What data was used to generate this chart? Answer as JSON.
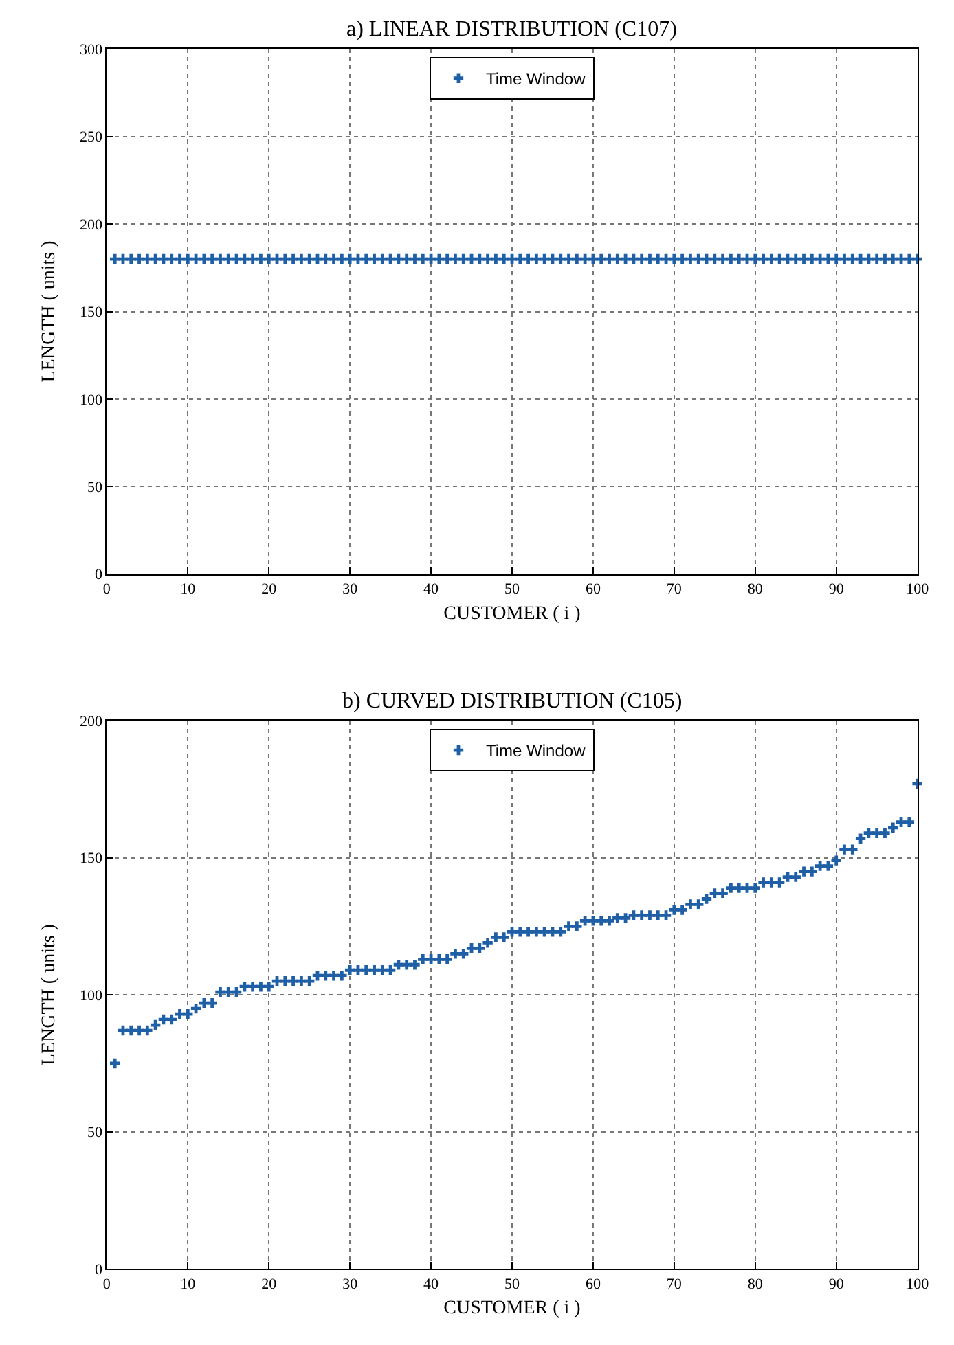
{
  "chart_data": [
    {
      "type": "scatter",
      "title": "a) LINEAR DISTRIBUTION (C107)",
      "xlabel": "CUSTOMER ( i )",
      "ylabel": "LENGTH ( units )",
      "x": [
        1,
        2,
        3,
        4,
        5,
        6,
        7,
        8,
        9,
        10,
        11,
        12,
        13,
        14,
        15,
        16,
        17,
        18,
        19,
        20,
        21,
        22,
        23,
        24,
        25,
        26,
        27,
        28,
        29,
        30,
        31,
        32,
        33,
        34,
        35,
        36,
        37,
        38,
        39,
        40,
        41,
        42,
        43,
        44,
        45,
        46,
        47,
        48,
        49,
        50,
        51,
        52,
        53,
        54,
        55,
        56,
        57,
        58,
        59,
        60,
        61,
        62,
        63,
        64,
        65,
        66,
        67,
        68,
        69,
        70,
        71,
        72,
        73,
        74,
        75,
        76,
        77,
        78,
        79,
        80,
        81,
        82,
        83,
        84,
        85,
        86,
        87,
        88,
        89,
        90,
        91,
        92,
        93,
        94,
        95,
        96,
        97,
        98,
        99,
        100
      ],
      "series": [
        {
          "name": "Time Window",
          "color": "#1f5fa5",
          "values": [
            180,
            180,
            180,
            180,
            180,
            180,
            180,
            180,
            180,
            180,
            180,
            180,
            180,
            180,
            180,
            180,
            180,
            180,
            180,
            180,
            180,
            180,
            180,
            180,
            180,
            180,
            180,
            180,
            180,
            180,
            180,
            180,
            180,
            180,
            180,
            180,
            180,
            180,
            180,
            180,
            180,
            180,
            180,
            180,
            180,
            180,
            180,
            180,
            180,
            180,
            180,
            180,
            180,
            180,
            180,
            180,
            180,
            180,
            180,
            180,
            180,
            180,
            180,
            180,
            180,
            180,
            180,
            180,
            180,
            180,
            180,
            180,
            180,
            180,
            180,
            180,
            180,
            180,
            180,
            180,
            180,
            180,
            180,
            180,
            180,
            180,
            180,
            180,
            180,
            180,
            180,
            180,
            180,
            180,
            180,
            180,
            180,
            180,
            180,
            180
          ]
        }
      ],
      "xlim": [
        0,
        100
      ],
      "xticks": [
        0,
        10,
        20,
        30,
        40,
        50,
        60,
        70,
        80,
        90,
        100
      ],
      "ylim": [
        0,
        300
      ],
      "yticks": [
        0,
        50,
        100,
        150,
        200,
        250,
        300
      ],
      "grid": true,
      "legend": "top",
      "marker": "cross"
    },
    {
      "type": "scatter",
      "title": "b) CURVED DISTRIBUTION (C105)",
      "xlabel": "CUSTOMER ( i )",
      "ylabel": "LENGTH ( units )",
      "x": [
        1,
        2,
        3,
        4,
        5,
        6,
        7,
        8,
        9,
        10,
        11,
        12,
        13,
        14,
        15,
        16,
        17,
        18,
        19,
        20,
        21,
        22,
        23,
        24,
        25,
        26,
        27,
        28,
        29,
        30,
        31,
        32,
        33,
        34,
        35,
        36,
        37,
        38,
        39,
        40,
        41,
        42,
        43,
        44,
        45,
        46,
        47,
        48,
        49,
        50,
        51,
        52,
        53,
        54,
        55,
        56,
        57,
        58,
        59,
        60,
        61,
        62,
        63,
        64,
        65,
        66,
        67,
        68,
        69,
        70,
        71,
        72,
        73,
        74,
        75,
        76,
        77,
        78,
        79,
        80,
        81,
        82,
        83,
        84,
        85,
        86,
        87,
        88,
        89,
        90,
        91,
        92,
        93,
        94,
        95,
        96,
        97,
        98,
        99,
        100
      ],
      "series": [
        {
          "name": "Time Window",
          "color": "#1f5fa5",
          "values": [
            75,
            87,
            87,
            87,
            87,
            89,
            91,
            91,
            93,
            93,
            95,
            97,
            97,
            101,
            101,
            101,
            103,
            103,
            103,
            103,
            105,
            105,
            105,
            105,
            105,
            107,
            107,
            107,
            107,
            109,
            109,
            109,
            109,
            109,
            109,
            111,
            111,
            111,
            113,
            113,
            113,
            113,
            115,
            115,
            117,
            117,
            119,
            121,
            121,
            123,
            123,
            123,
            123,
            123,
            123,
            123,
            125,
            125,
            127,
            127,
            127,
            127,
            128,
            128,
            129,
            129,
            129,
            129,
            129,
            131,
            131,
            133,
            133,
            135,
            137,
            137,
            139,
            139,
            139,
            139,
            141,
            141,
            141,
            143,
            143,
            145,
            145,
            147,
            147,
            149,
            153,
            153,
            157,
            159,
            159,
            159,
            161,
            163,
            163,
            177
          ]
        }
      ],
      "xlim": [
        0,
        100
      ],
      "xticks": [
        0,
        10,
        20,
        30,
        40,
        50,
        60,
        70,
        80,
        90,
        100
      ],
      "ylim": [
        0,
        200
      ],
      "yticks": [
        0,
        50,
        100,
        150,
        200
      ],
      "grid": true,
      "legend": "top",
      "marker": "cross"
    }
  ]
}
